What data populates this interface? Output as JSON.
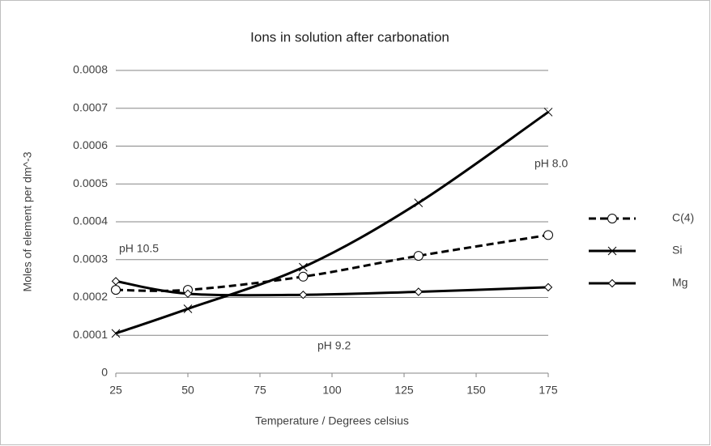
{
  "chart_data": {
    "type": "line",
    "title": "Ions in solution after carbonation",
    "x_label": "Temperature / Degrees celsius",
    "y_label": "Moles of element per dm^-3",
    "x": [
      25,
      50,
      90,
      130,
      175
    ],
    "series": [
      {
        "name": "C(4)",
        "color": "#000000",
        "dashed": true,
        "marker": "circle",
        "values": [
          0.00022,
          0.00022,
          0.000255,
          0.00031,
          0.000365
        ]
      },
      {
        "name": "Si",
        "color": "#000000",
        "dashed": false,
        "marker": "x",
        "values": [
          0.000105,
          0.00017,
          0.00028,
          0.00045,
          0.00069
        ]
      },
      {
        "name": "Mg",
        "color": "#000000",
        "dashed": false,
        "marker": "diamond",
        "values": [
          0.000243,
          0.00021,
          0.000207,
          0.000215,
          0.000227
        ]
      }
    ],
    "annotations": [
      "pH 10.5",
      "pH 9.2",
      "pH 8.0"
    ],
    "xlim": [
      25,
      175
    ],
    "xticks": [
      25,
      50,
      75,
      100,
      125,
      150,
      175
    ],
    "ylim": [
      0,
      0.0008
    ],
    "yticks": [
      0,
      0.0001,
      0.0002,
      0.0003,
      0.0004,
      0.0005,
      0.0006,
      0.0007,
      0.0008
    ],
    "grid": true,
    "legend": "right"
  }
}
